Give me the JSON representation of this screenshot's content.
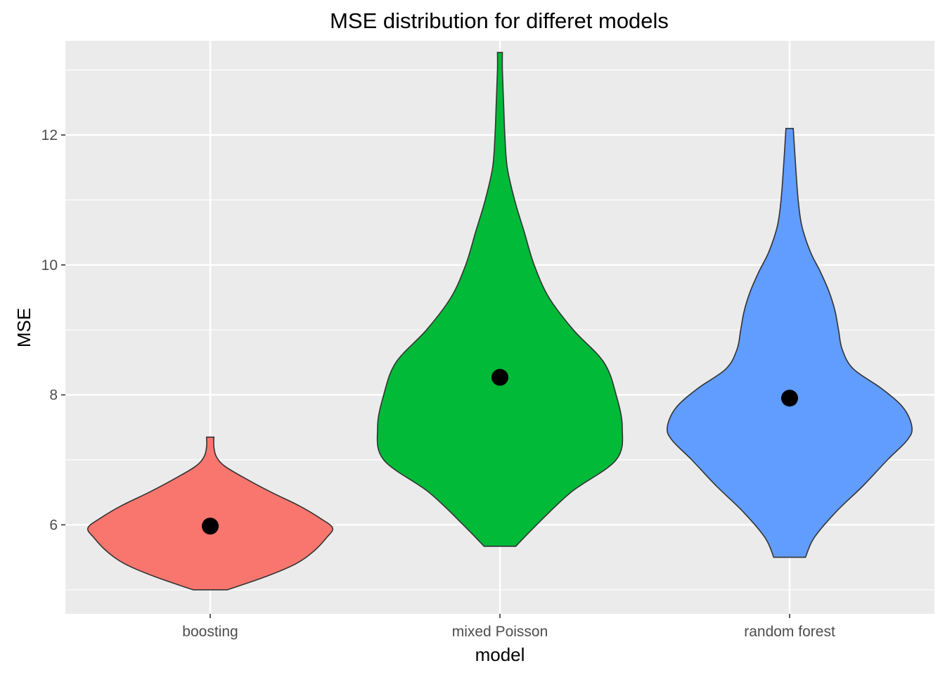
{
  "chart_data": {
    "type": "violin",
    "title": "MSE distribution for differet models",
    "xlabel": "model",
    "ylabel": "MSE",
    "ylim": [
      4.63,
      13.45
    ],
    "y_ticks": [
      6,
      8,
      10,
      12
    ],
    "y_tick_labels": [
      "6",
      "8",
      "10",
      "12"
    ],
    "grid": true,
    "legend": "none",
    "categories": [
      "boosting",
      "mixed Poisson",
      "random forest"
    ],
    "series": [
      {
        "category": "boosting",
        "color": "#F8766D",
        "min": 5.0,
        "max": 7.35,
        "mean_point": 5.98,
        "density_profile": [
          [
            5.0,
            0.14
          ],
          [
            5.2,
            0.45
          ],
          [
            5.4,
            0.7
          ],
          [
            5.6,
            0.85
          ],
          [
            5.8,
            0.95
          ],
          [
            5.95,
            1.0
          ],
          [
            6.1,
            0.9
          ],
          [
            6.3,
            0.72
          ],
          [
            6.5,
            0.5
          ],
          [
            6.7,
            0.3
          ],
          [
            6.9,
            0.12
          ],
          [
            7.05,
            0.05
          ],
          [
            7.2,
            0.03
          ],
          [
            7.35,
            0.03
          ]
        ]
      },
      {
        "category": "mixed Poisson",
        "color": "#00BA38",
        "min": 5.67,
        "max": 13.27,
        "mean_point": 8.27,
        "density_profile": [
          [
            5.67,
            0.13
          ],
          [
            6.0,
            0.3
          ],
          [
            6.5,
            0.58
          ],
          [
            7.0,
            0.95
          ],
          [
            7.5,
            1.0
          ],
          [
            8.0,
            0.95
          ],
          [
            8.5,
            0.85
          ],
          [
            9.0,
            0.6
          ],
          [
            9.5,
            0.4
          ],
          [
            10.0,
            0.28
          ],
          [
            10.5,
            0.2
          ],
          [
            11.0,
            0.12
          ],
          [
            11.5,
            0.06
          ],
          [
            12.0,
            0.04
          ],
          [
            12.5,
            0.03
          ],
          [
            13.0,
            0.02
          ],
          [
            13.27,
            0.02
          ]
        ]
      },
      {
        "category": "random forest",
        "color": "#619CFF",
        "min": 5.5,
        "max": 12.1,
        "mean_point": 7.95,
        "density_profile": [
          [
            5.5,
            0.13
          ],
          [
            5.8,
            0.2
          ],
          [
            6.2,
            0.38
          ],
          [
            6.6,
            0.6
          ],
          [
            7.0,
            0.8
          ],
          [
            7.3,
            0.96
          ],
          [
            7.5,
            1.0
          ],
          [
            7.8,
            0.93
          ],
          [
            8.1,
            0.75
          ],
          [
            8.4,
            0.52
          ],
          [
            8.7,
            0.43
          ],
          [
            9.0,
            0.4
          ],
          [
            9.3,
            0.37
          ],
          [
            9.6,
            0.32
          ],
          [
            9.9,
            0.25
          ],
          [
            10.2,
            0.17
          ],
          [
            10.6,
            0.1
          ],
          [
            11.0,
            0.07
          ],
          [
            11.5,
            0.05
          ],
          [
            12.1,
            0.03
          ]
        ]
      }
    ]
  }
}
